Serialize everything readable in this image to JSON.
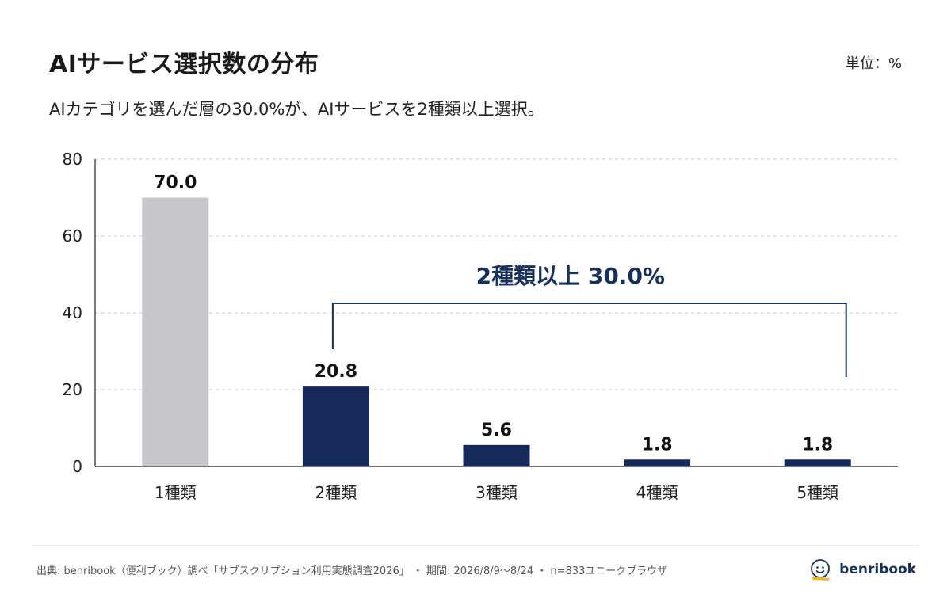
{
  "header": {
    "title": "AIサービス選択数の分布",
    "unit": "単位：%",
    "subtitle": "AIカテゴリを選んだ層の30.0%が、AIサービスを2種類以上選択。"
  },
  "chart_data": {
    "type": "bar",
    "categories": [
      "1種類",
      "2種類",
      "3種類",
      "4種類",
      "5種類"
    ],
    "values": [
      70.0,
      20.8,
      5.6,
      1.8,
      1.8
    ],
    "value_labels": [
      "70.0",
      "20.8",
      "5.6",
      "1.8",
      "1.8"
    ],
    "ylim": [
      0,
      80
    ],
    "yticks": [
      0,
      20,
      40,
      60,
      80
    ],
    "grid": true,
    "bar_colors": [
      "#c8c8cc",
      "#15295a",
      "#15295a",
      "#15295a",
      "#15295a"
    ],
    "annotation": {
      "text": "2種類以上 30.0%",
      "from_category": "2種類",
      "to_category": "5種類",
      "color": "#17305e"
    }
  },
  "footer": {
    "source": "出典: benribook（便利ブック）調べ「サブスクリプション利用実態調査2026」 ・ 期間: 2026/8/9〜8/24 ・ n=833ユニークブラウザ",
    "logo_text": "benribook"
  }
}
